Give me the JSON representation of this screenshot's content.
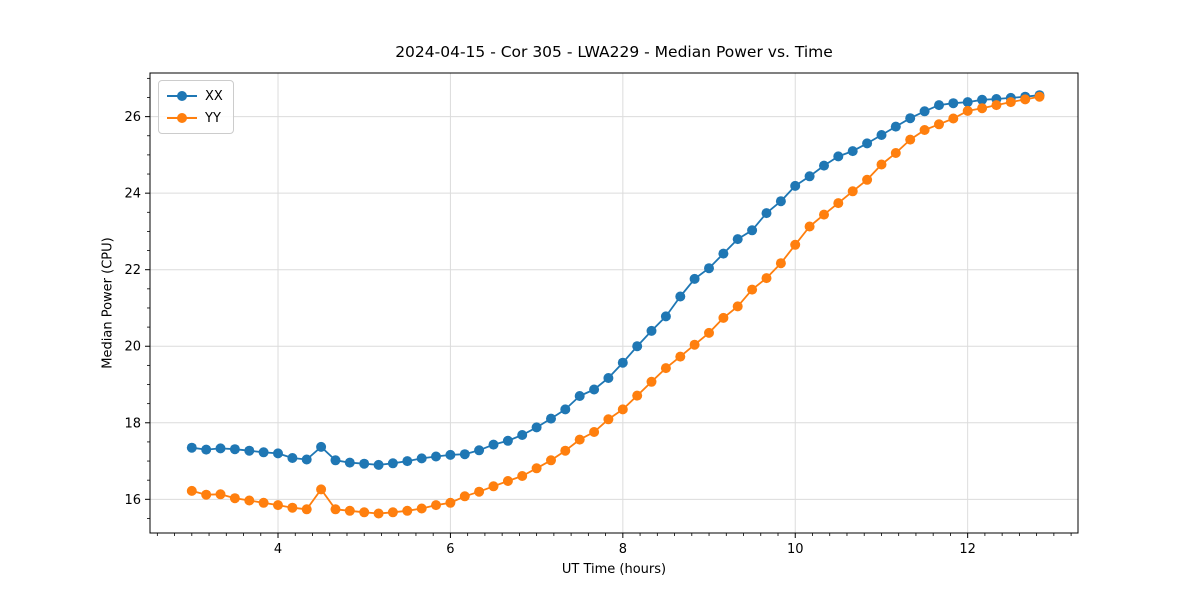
{
  "figure": {
    "title": "2024-04-15 - Cor 305 - LWA229 - Median Power vs. Time",
    "xlabel": "UT Time (hours)",
    "ylabel": "Median Power (CPU)"
  },
  "legend": {
    "items": [
      {
        "label": "XX",
        "color": "#1f77b4"
      },
      {
        "label": "YY",
        "color": "#ff7f0e"
      }
    ],
    "position": "upper left"
  },
  "colors": {
    "series_xx": "#1f77b4",
    "series_yy": "#ff7f0e",
    "grid": "#dcdcdc",
    "spine": "#000000",
    "background": "#ffffff"
  },
  "chart_data": {
    "type": "line",
    "title": "2024-04-15 - Cor 305 - LWA229 - Median Power vs. Time",
    "xlabel": "UT Time (hours)",
    "ylabel": "Median Power (CPU)",
    "grid": true,
    "legend_position": "upper left",
    "marker": "circle",
    "marker_radius": 5,
    "line_width": 1.8,
    "xlim": [
      2.515,
      13.28
    ],
    "ylim": [
      15.12,
      27.14
    ],
    "xticks": [
      4,
      6,
      8,
      10,
      12
    ],
    "yticks": [
      16,
      18,
      20,
      22,
      24,
      26
    ],
    "x_minor_step": 0.2,
    "y_minor_step": 0.5,
    "x": [
      3.0,
      3.167,
      3.333,
      3.5,
      3.667,
      3.833,
      4.0,
      4.167,
      4.333,
      4.5,
      4.667,
      4.833,
      5.0,
      5.167,
      5.333,
      5.5,
      5.667,
      5.833,
      6.0,
      6.167,
      6.333,
      6.5,
      6.667,
      6.833,
      7.0,
      7.167,
      7.333,
      7.5,
      7.667,
      7.833,
      8.0,
      8.167,
      8.333,
      8.5,
      8.667,
      8.833,
      9.0,
      9.167,
      9.333,
      9.5,
      9.667,
      9.833,
      10.0,
      10.167,
      10.333,
      10.5,
      10.667,
      10.833,
      11.0,
      11.167,
      11.333,
      11.5,
      11.667,
      11.833,
      12.0,
      12.167,
      12.333,
      12.5,
      12.667,
      12.833
    ],
    "series": [
      {
        "name": "XX",
        "color": "#1f77b4",
        "values": [
          17.35,
          17.3,
          17.33,
          17.31,
          17.27,
          17.23,
          17.2,
          17.08,
          17.04,
          17.37,
          17.02,
          16.96,
          16.93,
          16.9,
          16.94,
          17.0,
          17.07,
          17.12,
          17.16,
          17.18,
          17.28,
          17.43,
          17.53,
          17.68,
          17.88,
          18.11,
          18.35,
          18.7,
          18.87,
          19.17,
          19.57,
          20.0,
          20.4,
          20.78,
          21.3,
          21.76,
          22.04,
          22.42,
          22.8,
          23.03,
          23.48,
          23.79,
          24.19,
          24.44,
          24.72,
          24.96,
          25.1,
          25.3,
          25.52,
          25.74,
          25.96,
          26.14,
          26.3,
          26.35,
          26.38,
          26.44,
          26.46,
          26.49,
          26.52,
          26.56
        ]
      },
      {
        "name": "YY",
        "color": "#ff7f0e",
        "values": [
          16.22,
          16.12,
          16.13,
          16.03,
          15.97,
          15.91,
          15.85,
          15.78,
          15.74,
          16.26,
          15.74,
          15.7,
          15.66,
          15.63,
          15.66,
          15.7,
          15.76,
          15.85,
          15.91,
          16.08,
          16.2,
          16.34,
          16.48,
          16.61,
          16.81,
          17.02,
          17.27,
          17.56,
          17.76,
          18.09,
          18.35,
          18.71,
          19.07,
          19.43,
          19.73,
          20.04,
          20.35,
          20.74,
          21.04,
          21.48,
          21.78,
          22.17,
          22.65,
          23.13,
          23.44,
          23.74,
          24.05,
          24.35,
          24.75,
          25.05,
          25.4,
          25.65,
          25.8,
          25.95,
          26.15,
          26.22,
          26.3,
          26.38,
          26.45,
          26.52
        ]
      }
    ]
  }
}
